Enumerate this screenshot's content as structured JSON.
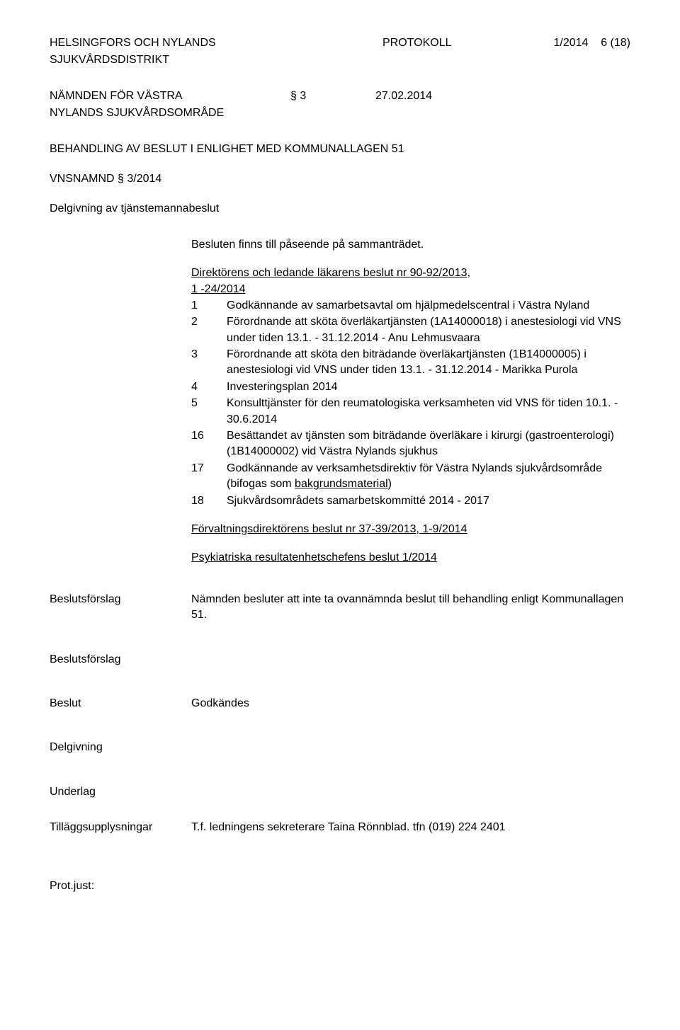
{
  "header": {
    "org_line1": "HELSINGFORS OCH NYLANDS",
    "org_line2": "SJUKVÅRDSDISTRIKT",
    "doc_type": "PROTOKOLL",
    "doc_number": "1/2014",
    "page": "6 (18)"
  },
  "committee": {
    "name_line1": "NÄMNDEN FÖR VÄSTRA",
    "name_line2": "NYLANDS SJUKVÅRDSOMRÅDE",
    "paragraph": "§ 3",
    "date": "27.02.2014"
  },
  "title": "BEHANDLING AV BESLUT I ENLIGHET MED KOMMUNALLAGEN 51",
  "reference": "VNSNAMND § 3/2014",
  "delgivning_intro": "Delgivning av tjänstemannabeslut",
  "intro_text": "Besluten finns till påseende på sammanträdet.",
  "director_underline": "Direktörens och ledande läkarens beslut nr 90-92/2013,",
  "director_line2": "1 -24/2014",
  "items": [
    {
      "num": "1",
      "text_parts": [
        {
          "t": "Godkännande av samarbetsavtal om hjälpmedelscentral i Västra Nyland"
        }
      ]
    },
    {
      "num": "2",
      "text_parts": [
        {
          "t": "Förordnande att sköta överläkartjänsten (1A14000018) i anestesiologi vid VNS under tiden 13.1. - 31.12.2014 - Anu Lehmusvaara"
        }
      ]
    },
    {
      "num": "3",
      "text_parts": [
        {
          "t": "Förordnande att sköta den biträdande överläkartjänsten (1B14000005) i anestesiologi vid VNS under tiden 13.1. - 31.12.2014 - Marikka Purola"
        }
      ]
    },
    {
      "num": "4",
      "text_parts": [
        {
          "t": "Investeringsplan 2014"
        }
      ]
    },
    {
      "num": "5",
      "text_parts": [
        {
          "t": "Konsulttjänster för den reumatologiska verksamheten vid VNS för tiden 10.1. - 30.6.2014"
        }
      ]
    },
    {
      "num": "16",
      "text_parts": [
        {
          "t": "Besättandet av tjänsten som biträdande överläkare i kirurgi (gastroenterologi) (1B14000002) vid Västra Nylands sjukhus"
        }
      ]
    },
    {
      "num": "17",
      "text_parts": [
        {
          "t": "Godkännande av verksamhetsdirektiv för Västra Nylands sjukvårdsområde (bifogas som "
        },
        {
          "t": "bakgrundsmaterial",
          "u": true
        },
        {
          "t": ")"
        }
      ]
    },
    {
      "num": "18",
      "text_parts": [
        {
          "t": "Sjukvårdsområdets samarbetskommitté 2014 - 2017"
        }
      ]
    }
  ],
  "forvaltning": "Förvaltningsdirektörens beslut nr 37-39/2013, 1-9/2014",
  "psyk": "Psykiatriska resultatenhetschefens beslut 1/2014",
  "beslutsforslag_label": "Beslutsförslag",
  "beslutsforslag_text": "Nämnden besluter att inte ta ovannämnda beslut till behandling enligt Kommunallagen 51.",
  "beslutsforslag_label_2": "Beslutsförslag",
  "beslut_label": "Beslut",
  "beslut_text": "Godkändes",
  "delgivning_label": "Delgivning",
  "underlag_label": "Underlag",
  "tilaggs_label": "Tilläggsupplysningar",
  "tilaggs_text": "T.f. ledningens sekreterare Taina Rönnblad. tfn (019) 224 2401",
  "prot_just": "Prot.just:"
}
